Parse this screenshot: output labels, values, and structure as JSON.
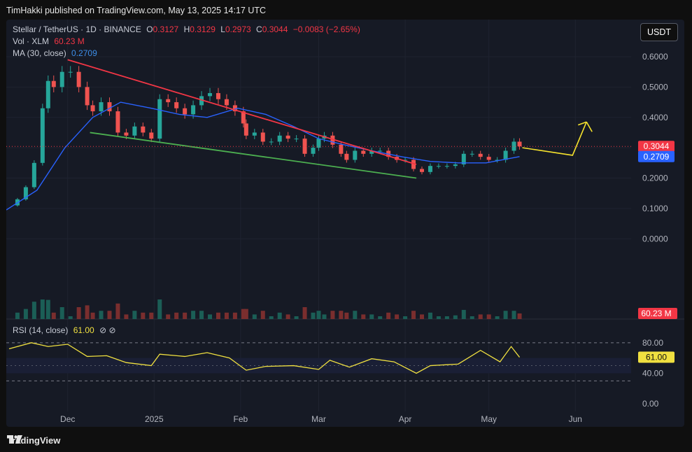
{
  "header": {
    "publisher_line": "TimHakki published on TradingView.com, May 13, 2025 14:17 UTC"
  },
  "legend": {
    "symbol": "Stellar / TetherUS · 1D · BINANCE",
    "o_label": "O",
    "o_value": "0.3127",
    "h_label": "H",
    "h_value": "0.3129",
    "l_label": "L",
    "l_value": "0.2973",
    "c_label": "C",
    "c_value": "0.3044",
    "change": "−0.0083 (−2.65%)",
    "vol_label": "Vol · XLM",
    "vol_value": "60.23 M",
    "ma_label": "MA (30, close)",
    "ma_value": "0.2709"
  },
  "currency_button": "USDT",
  "rsi": {
    "label": "RSI (14, close)",
    "value": "61.00",
    "icons": "⊘ ⊘"
  },
  "footer": {
    "brand": "TradingView"
  },
  "colors": {
    "up": "#26a69a",
    "down": "#ef5350",
    "ma": "#2962ff",
    "resistance": "#f23645",
    "support": "#4caf50",
    "projection": "#f5e22d",
    "rsi": "#f0e040"
  },
  "chart_data": {
    "type": "candlestick",
    "title": "Stellar / TetherUS · 1D · BINANCE",
    "ylim": [
      -0.2,
      0.63
    ],
    "y_ticks": [
      "0.6000",
      "0.5000",
      "0.4000",
      "0.3000",
      "0.2000",
      "0.1000",
      "0.0000"
    ],
    "y_tick_values": [
      0.6,
      0.5,
      0.4,
      0.3,
      0.2,
      0.1,
      0.0
    ],
    "x_ticks": [
      "Dec",
      "2025",
      "Feb",
      "Mar",
      "Apr",
      "May",
      "Jun"
    ],
    "x_tick_dates": [
      "2024-12-01",
      "2025-01-01",
      "2025-02-01",
      "2025-03-01",
      "2025-04-01",
      "2025-05-01",
      "2025-06-01"
    ],
    "x_range": [
      "2024-11-09",
      "2025-06-21"
    ],
    "last_price_label": "0.3044",
    "ma_price_label": "0.2709",
    "volume_label": "60.23 M",
    "close_series": {
      "x": [
        "2024-11-10",
        "2024-11-13",
        "2024-11-16",
        "2024-11-19",
        "2024-11-22",
        "2024-11-24",
        "2024-11-26",
        "2024-11-29",
        "2024-12-02",
        "2024-12-05",
        "2024-12-08",
        "2024-12-10",
        "2024-12-13",
        "2024-12-16",
        "2024-12-19",
        "2024-12-22",
        "2024-12-25",
        "2024-12-28",
        "2024-12-31",
        "2025-01-03",
        "2025-01-06",
        "2025-01-09",
        "2025-01-12",
        "2025-01-15",
        "2025-01-18",
        "2025-01-21",
        "2025-01-24",
        "2025-01-27",
        "2025-01-30",
        "2025-02-02",
        "2025-02-03",
        "2025-02-06",
        "2025-02-09",
        "2025-02-12",
        "2025-02-15",
        "2025-02-18",
        "2025-02-21",
        "2025-02-24",
        "2025-02-27",
        "2025-03-01",
        "2025-03-03",
        "2025-03-06",
        "2025-03-09",
        "2025-03-11",
        "2025-03-14",
        "2025-03-17",
        "2025-03-20",
        "2025-03-23",
        "2025-03-26",
        "2025-03-29",
        "2025-04-01",
        "2025-04-04",
        "2025-04-07",
        "2025-04-10",
        "2025-04-13",
        "2025-04-16",
        "2025-04-19",
        "2025-04-22",
        "2025-04-25",
        "2025-04-28",
        "2025-05-01",
        "2025-05-04",
        "2025-05-07",
        "2025-05-10",
        "2025-05-12"
      ],
      "values": [
        0.11,
        0.13,
        0.17,
        0.25,
        0.43,
        0.52,
        0.5,
        0.55,
        0.55,
        0.5,
        0.44,
        0.42,
        0.45,
        0.42,
        0.35,
        0.34,
        0.37,
        0.35,
        0.33,
        0.46,
        0.45,
        0.43,
        0.41,
        0.44,
        0.47,
        0.48,
        0.46,
        0.44,
        0.42,
        0.38,
        0.34,
        0.35,
        0.32,
        0.32,
        0.34,
        0.33,
        0.33,
        0.28,
        0.3,
        0.33,
        0.34,
        0.31,
        0.28,
        0.26,
        0.29,
        0.28,
        0.29,
        0.29,
        0.27,
        0.26,
        0.26,
        0.23,
        0.22,
        0.24,
        0.24,
        0.24,
        0.245,
        0.28,
        0.28,
        0.27,
        0.26,
        0.26,
        0.29,
        0.32,
        0.3044
      ]
    },
    "ma_series": {
      "x": [
        "2024-11-09",
        "2024-11-20",
        "2024-11-30",
        "2024-12-10",
        "2024-12-20",
        "2024-12-31",
        "2025-01-10",
        "2025-01-20",
        "2025-01-31",
        "2025-02-10",
        "2025-02-20",
        "2025-03-01",
        "2025-03-10",
        "2025-03-20",
        "2025-03-31",
        "2025-04-10",
        "2025-04-20",
        "2025-04-30",
        "2025-05-12"
      ],
      "values": [
        0.095,
        0.16,
        0.3,
        0.4,
        0.45,
        0.43,
        0.41,
        0.4,
        0.43,
        0.41,
        0.37,
        0.33,
        0.31,
        0.29,
        0.27,
        0.255,
        0.25,
        0.25,
        0.2709
      ]
    },
    "trendlines": [
      {
        "name": "resistance",
        "x": [
          "2024-12-01",
          "2025-04-05"
        ],
        "y": [
          0.59,
          0.245
        ]
      },
      {
        "name": "support",
        "x": [
          "2024-12-09",
          "2025-04-05"
        ],
        "y": [
          0.35,
          0.2
        ]
      }
    ],
    "projection": {
      "x": [
        "2025-05-13",
        "2025-05-31",
        "2025-06-05",
        "2025-06-02"
      ],
      "y": [
        0.3,
        0.275,
        0.385,
        0.375
      ]
    },
    "rsi_series": {
      "ylim": [
        -10,
        100
      ],
      "levels": [
        80,
        60,
        40,
        30
      ],
      "y_ticks": [
        "80.00",
        "40.00",
        "0.00"
      ],
      "y_tick_values": [
        80,
        40,
        0
      ],
      "last_value": "61.00",
      "x": [
        "2024-11-10",
        "2024-11-18",
        "2024-11-24",
        "2024-12-01",
        "2024-12-08",
        "2024-12-15",
        "2024-12-22",
        "2024-12-31",
        "2025-01-03",
        "2025-01-12",
        "2025-01-20",
        "2025-01-28",
        "2025-02-03",
        "2025-02-10",
        "2025-02-20",
        "2025-03-01",
        "2025-03-05",
        "2025-03-12",
        "2025-03-20",
        "2025-03-28",
        "2025-04-05",
        "2025-04-10",
        "2025-04-20",
        "2025-04-28",
        "2025-05-05",
        "2025-05-09",
        "2025-05-12"
      ],
      "values": [
        72,
        80,
        75,
        78,
        62,
        63,
        54,
        50,
        65,
        62,
        67,
        60,
        44,
        49,
        50,
        45,
        57,
        48,
        59,
        55,
        40,
        50,
        52,
        70,
        55,
        75,
        61
      ]
    }
  }
}
